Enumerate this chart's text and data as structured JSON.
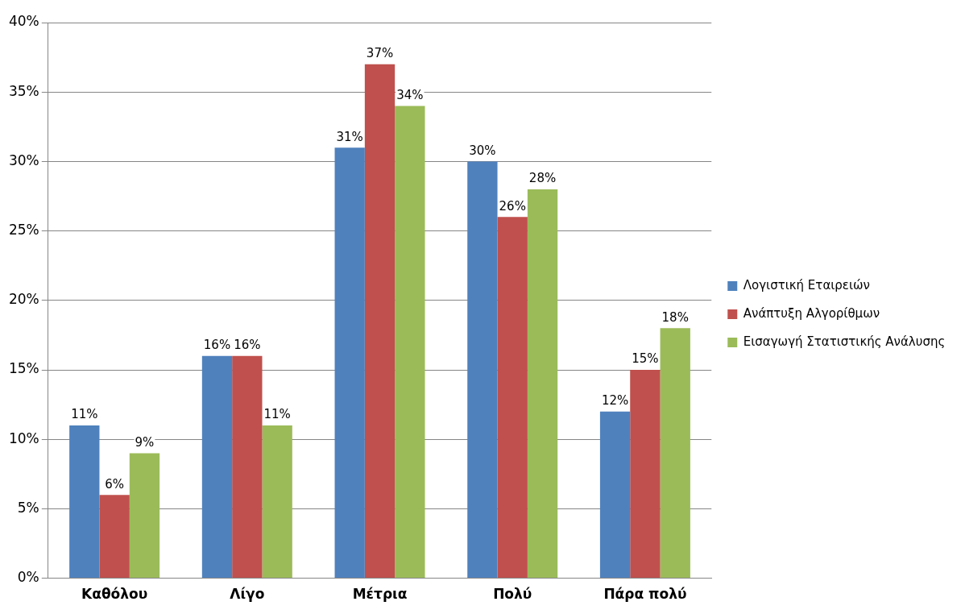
{
  "chart_data": {
    "type": "bar",
    "categories": [
      "Καθόλου",
      "Λίγο",
      "Μέτρια",
      "Πολύ",
      "Πάρα πολύ"
    ],
    "series": [
      {
        "name": "Λογιστική Εταιρειών",
        "color": "#4f81bd",
        "values": [
          11,
          16,
          31,
          30,
          12
        ],
        "value_labels": [
          "11%",
          "16%",
          "31%",
          "30%",
          "12%"
        ]
      },
      {
        "name": "Ανάπτυξη Αλγορίθμων",
        "color": "#c0504d",
        "values": [
          6,
          16,
          37,
          26,
          15
        ],
        "value_labels": [
          "6%",
          "16%",
          "37%",
          "26%",
          "15%"
        ]
      },
      {
        "name": "Εισαγωγή Στατιστικής Ανάλυσης",
        "color": "#9bbb59",
        "values": [
          9,
          11,
          34,
          28,
          18
        ],
        "value_labels": [
          "9%",
          "11%",
          "34%",
          "28%",
          "18%"
        ]
      }
    ],
    "ylim": [
      0,
      40
    ],
    "yticks": [
      {
        "value": 0,
        "label": "0%"
      },
      {
        "value": 5,
        "label": "5%"
      },
      {
        "value": 10,
        "label": "10%"
      },
      {
        "value": 15,
        "label": "15%"
      },
      {
        "value": 20,
        "label": "20%"
      },
      {
        "value": 25,
        "label": "25%"
      },
      {
        "value": 30,
        "label": "30%"
      },
      {
        "value": 35,
        "label": "35%"
      },
      {
        "value": 40,
        "label": "40%"
      }
    ],
    "grid": "y",
    "legend": "right"
  }
}
